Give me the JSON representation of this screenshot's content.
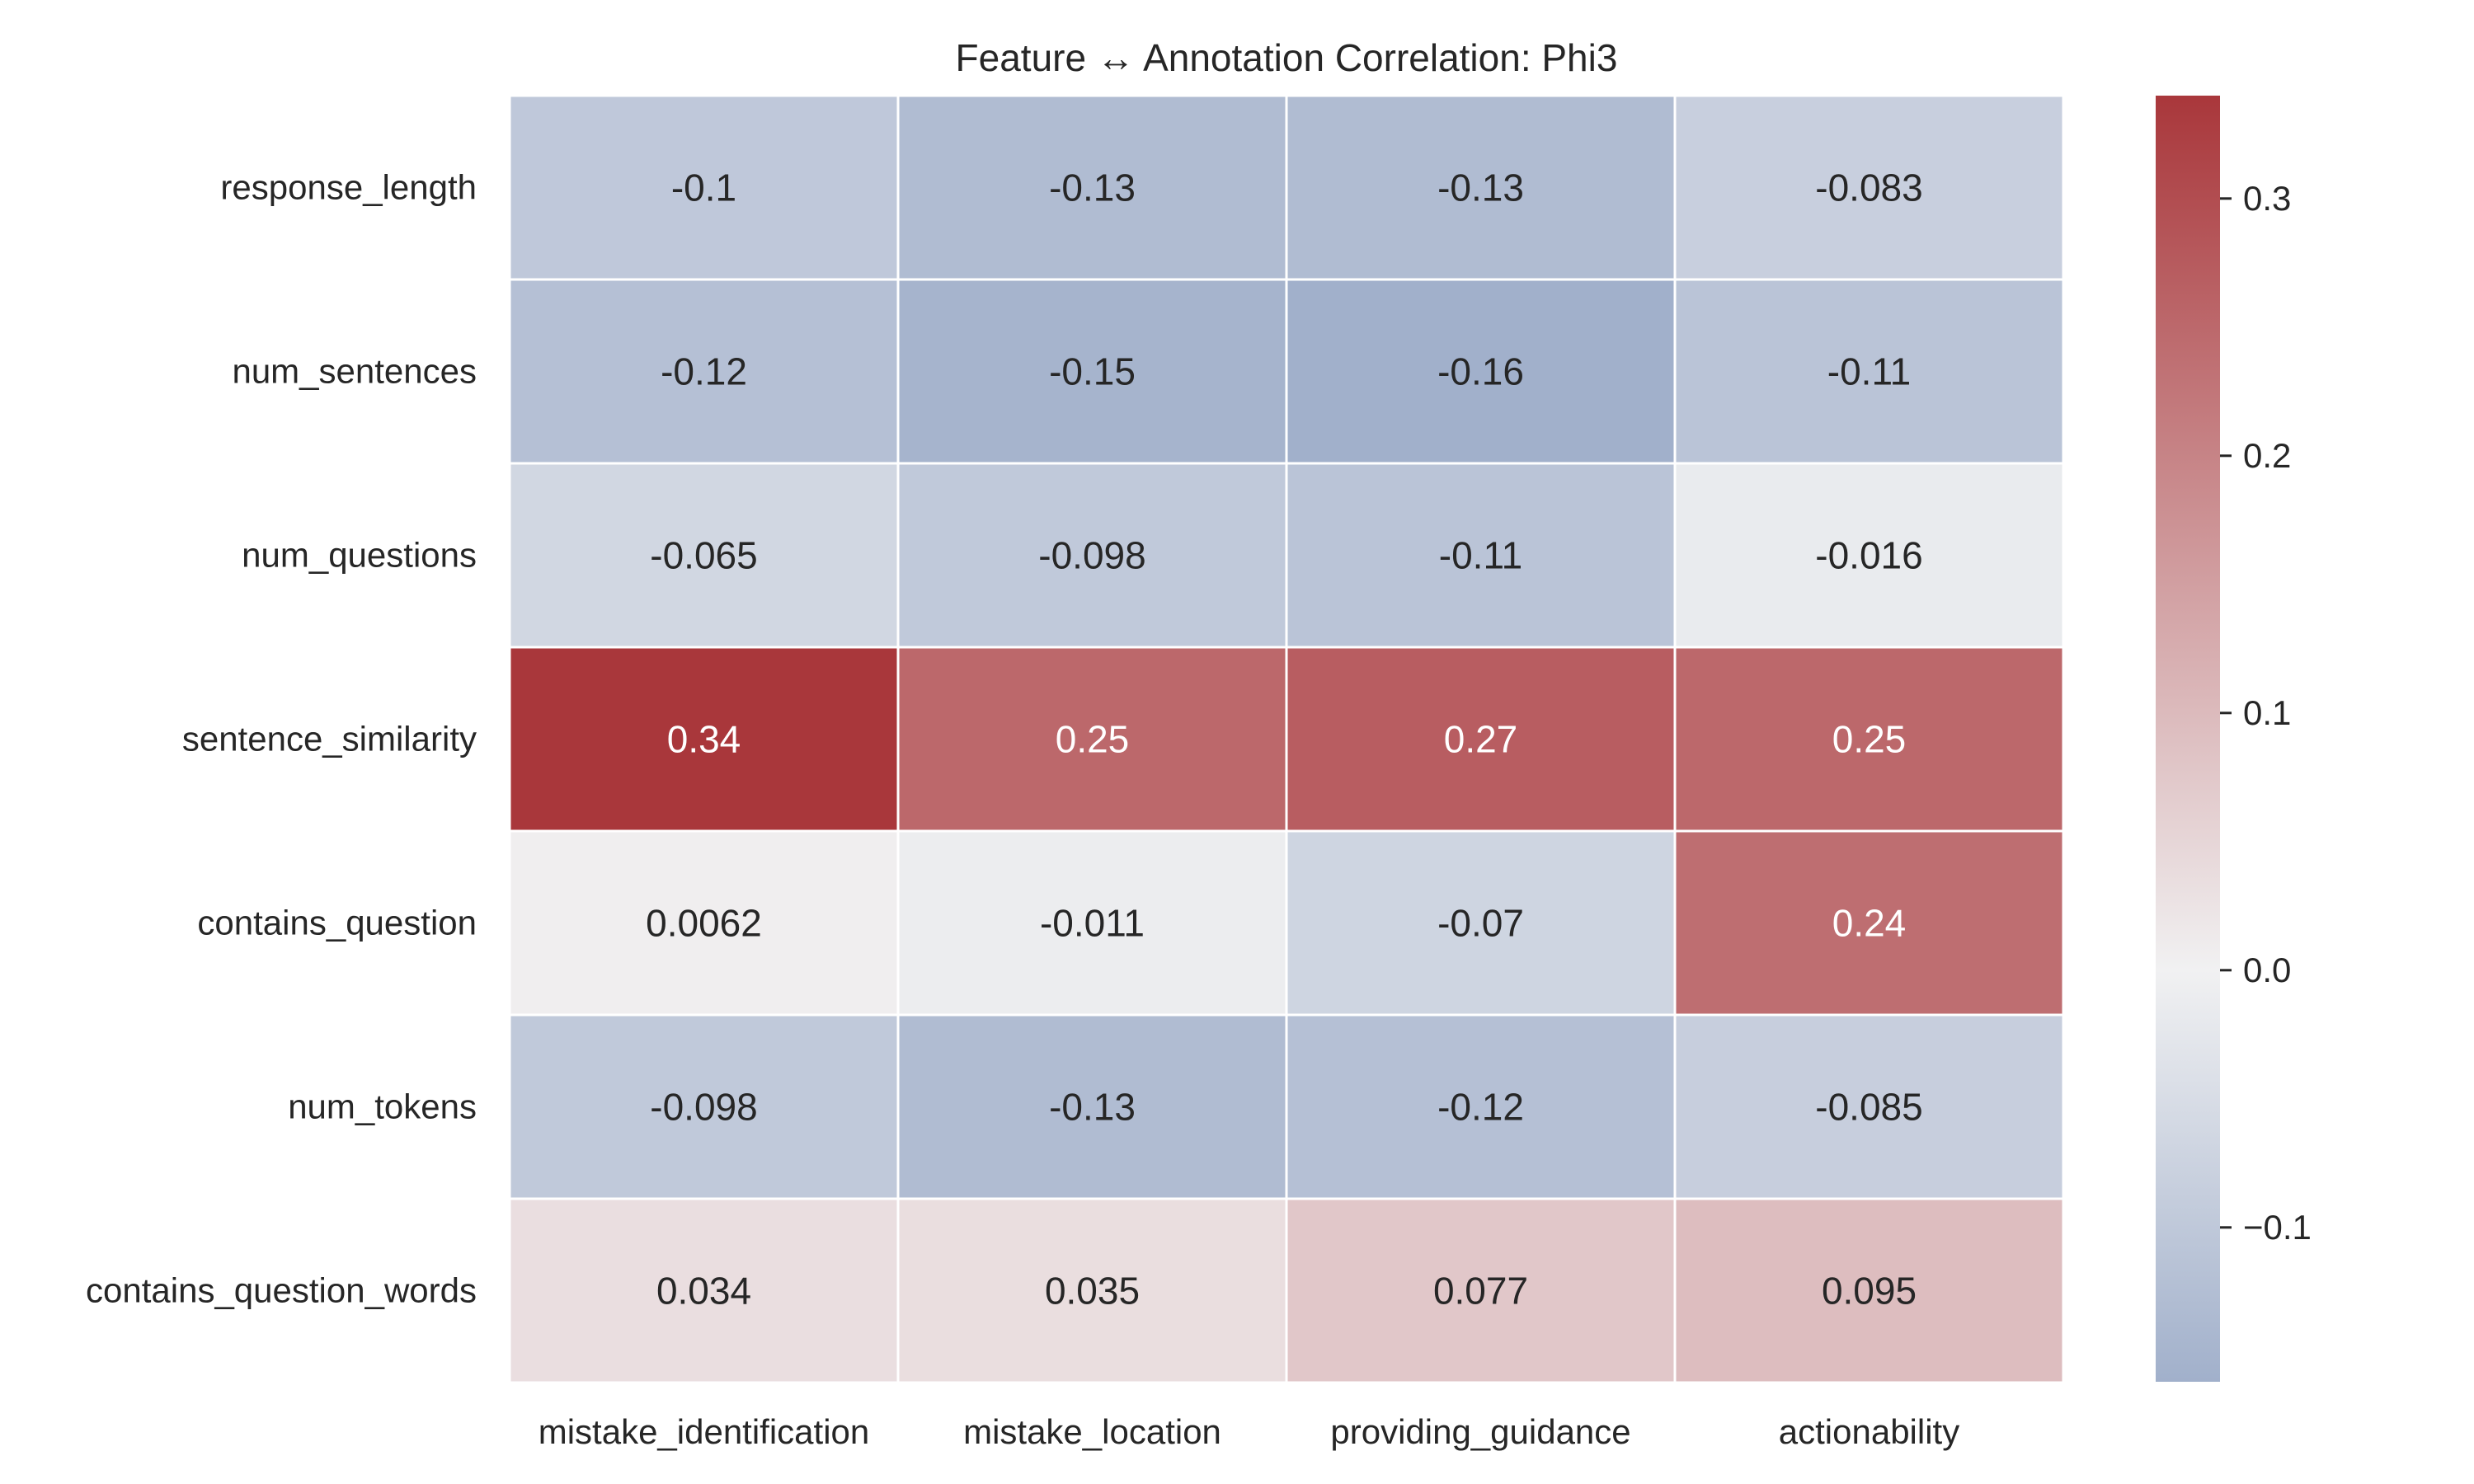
{
  "chart_data": {
    "type": "heatmap",
    "title": "Feature ↔ Annotation Correlation: Phi3",
    "xlabel": "",
    "ylabel": "",
    "rows": [
      "response_length",
      "num_sentences",
      "num_questions",
      "sentence_similarity",
      "contains_question",
      "num_tokens",
      "contains_question_words"
    ],
    "columns": [
      "mistake_identification",
      "mistake_location",
      "providing_guidance",
      "actionability"
    ],
    "values": [
      [
        -0.1,
        -0.13,
        -0.13,
        -0.083
      ],
      [
        -0.12,
        -0.15,
        -0.16,
        -0.11
      ],
      [
        -0.065,
        -0.098,
        -0.11,
        -0.016
      ],
      [
        0.34,
        0.25,
        0.27,
        0.25
      ],
      [
        0.0062,
        -0.011,
        -0.07,
        0.24
      ],
      [
        -0.098,
        -0.13,
        -0.12,
        -0.085
      ],
      [
        0.034,
        0.035,
        0.077,
        0.095
      ]
    ],
    "value_labels": [
      [
        "-0.1",
        "-0.13",
        "-0.13",
        "-0.083"
      ],
      [
        "-0.12",
        "-0.15",
        "-0.16",
        "-0.11"
      ],
      [
        "-0.065",
        "-0.098",
        "-0.11",
        "-0.016"
      ],
      [
        "0.34",
        "0.25",
        "0.27",
        "0.25"
      ],
      [
        "0.0062",
        "-0.011",
        "-0.07",
        "0.24"
      ],
      [
        "-0.098",
        "-0.13",
        "-0.12",
        "-0.085"
      ],
      [
        "0.034",
        "0.035",
        "0.077",
        "0.095"
      ]
    ],
    "colorbar": {
      "range": [
        -0.16,
        0.34
      ],
      "center": 0,
      "ticks": [
        0.3,
        0.2,
        0.1,
        0.0,
        -0.1
      ],
      "tick_labels": [
        "0.3",
        "0.2",
        "0.1",
        "0.0",
        "−0.1"
      ],
      "colormap": "vlag",
      "color_low": "#a1b0cb",
      "color_mid": "#f1f1f2",
      "color_high": "#a9373b"
    },
    "grid": false,
    "legend": "colorbar-right"
  }
}
